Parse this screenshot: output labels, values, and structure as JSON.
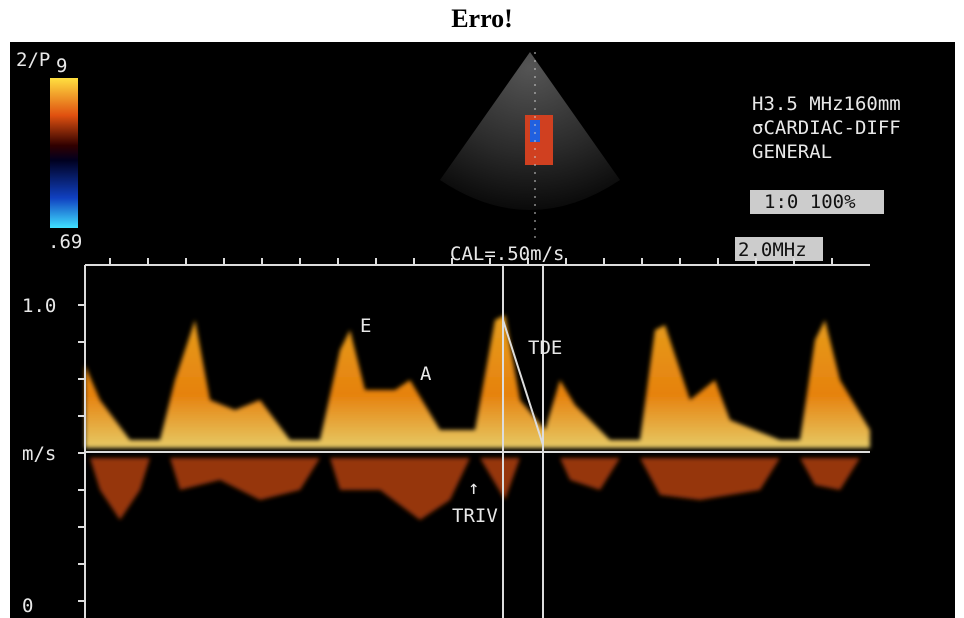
{
  "title": "Erro!",
  "colorbar": {
    "top_label": "2/P",
    "top_sub": "9",
    "bottom_label": ".69"
  },
  "info": {
    "line1": "H3.5 MHz160mm",
    "line2": "σCARDIAC-DIFF",
    "line3": "GENERAL",
    "gain": "1:0 100%"
  },
  "scale": {
    "cal": "CAL=.50m/s",
    "freq": "2.0MHz",
    "top": "1.0",
    "unit": "m/s",
    "bottom": "0"
  },
  "annotations": {
    "e": "E",
    "a": "A",
    "tde": "TDE",
    "triv": "TRIV"
  }
}
